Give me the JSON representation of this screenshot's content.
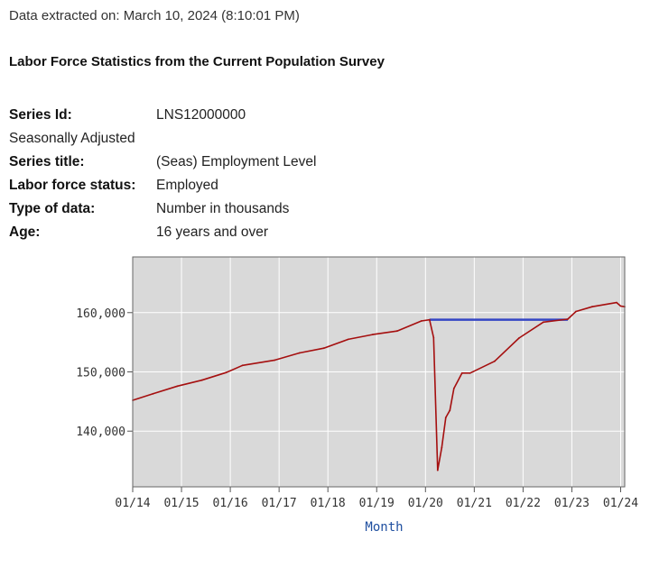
{
  "extracted": "Data extracted on: March 10, 2024 (8:10:01 PM)",
  "title": "Labor Force Statistics from the Current Population Survey",
  "meta": {
    "series_id_label": "Series Id:",
    "series_id": "LNS12000000",
    "seasonal": "Seasonally Adjusted",
    "series_title_label": "Series title:",
    "series_title": "(Seas) Employment Level",
    "status_label": "Labor force status:",
    "status": "Employed",
    "type_label": "Type of data:",
    "type": "Number in thousands",
    "age_label": "Age:",
    "age": "16 years and over"
  },
  "chart_data": {
    "type": "line",
    "xlabel": "Month",
    "ylabel": "",
    "x_tick_labels": [
      "01/14",
      "01/15",
      "01/16",
      "01/17",
      "01/18",
      "01/19",
      "01/20",
      "01/21",
      "01/22",
      "01/23",
      "01/24"
    ],
    "y_tick_labels": [
      "140,000",
      "150,000",
      "160,000"
    ],
    "y_ticks": [
      140000,
      150000,
      160000
    ],
    "xlim": [
      "2014-01",
      "2024-02"
    ],
    "ylim": [
      130600,
      169400
    ],
    "grid": true,
    "colors": {
      "series": "#a50f0f",
      "reference": "#3446c4",
      "plot_bg": "#d9d9d9",
      "grid": "#ffffff"
    },
    "series": [
      {
        "anchors": [
          [
            "2014-01",
            145200
          ],
          [
            "2014-06",
            146300
          ],
          [
            "2014-12",
            147600
          ],
          [
            "2015-06",
            148600
          ],
          [
            "2015-12",
            149900
          ],
          [
            "2016-04",
            151100
          ],
          [
            "2016-12",
            152000
          ],
          [
            "2017-06",
            153200
          ],
          [
            "2017-12",
            154000
          ],
          [
            "2018-06",
            155500
          ],
          [
            "2018-12",
            156300
          ],
          [
            "2019-06",
            156900
          ],
          [
            "2019-12",
            158600
          ],
          [
            "2020-02",
            158800
          ],
          [
            "2020-03",
            155800
          ],
          [
            "2020-04",
            133400
          ],
          [
            "2020-05",
            137200
          ],
          [
            "2020-06",
            142300
          ],
          [
            "2020-07",
            143500
          ],
          [
            "2020-08",
            147200
          ],
          [
            "2020-10",
            149800
          ],
          [
            "2020-12",
            149800
          ],
          [
            "2021-06",
            151800
          ],
          [
            "2021-12",
            155700
          ],
          [
            "2022-06",
            158400
          ],
          [
            "2022-12",
            158900
          ],
          [
            "2023-02",
            160200
          ],
          [
            "2023-06",
            161000
          ],
          [
            "2023-12",
            161700
          ],
          [
            "2024-01",
            161100
          ],
          [
            "2024-02",
            161000
          ]
        ]
      }
    ],
    "reference_line": {
      "y": 158800,
      "x_start": "2020-02",
      "x_end": "2022-12"
    }
  }
}
